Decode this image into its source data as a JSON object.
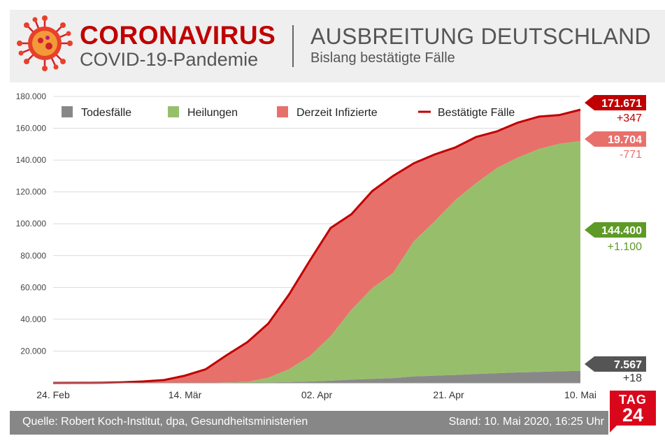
{
  "header": {
    "title": "CORONAVIRUS",
    "subtitle": "COVID-19-Pandemie",
    "right_title": "AUSBREITUNG DEUTSCHLAND",
    "right_subtitle": "Bislang bestätigte Fälle"
  },
  "footer": {
    "source": "Quelle: Robert Koch-Institut, dpa, Gesundheitsministerien",
    "stand": "Stand: 10. Mai 2020, 16:25 Uhr"
  },
  "logo": {
    "line1": "TAG",
    "line2": "24"
  },
  "colors": {
    "deaths": "#888888",
    "recovered": "#97bf6b",
    "infected": "#e8706b",
    "confirmed": "#c00000",
    "brand": "#d9071b"
  },
  "icons": [
    "coronavirus-icon"
  ],
  "chart_data": {
    "type": "area",
    "x": [
      "2020-02-24",
      "2020-02-28",
      "2020-03-02",
      "2020-03-05",
      "2020-03-08",
      "2020-03-11",
      "2020-03-14",
      "2020-03-17",
      "2020-03-20",
      "2020-03-23",
      "2020-03-26",
      "2020-03-29",
      "2020-04-01",
      "2020-04-04",
      "2020-04-07",
      "2020-04-10",
      "2020-04-13",
      "2020-04-16",
      "2020-04-19",
      "2020-04-22",
      "2020-04-25",
      "2020-04-28",
      "2020-05-01",
      "2020-05-04",
      "2020-05-07",
      "2020-05-10"
    ],
    "series": [
      {
        "name": "Todesfälle",
        "values": [
          0,
          0,
          0,
          0,
          0,
          2,
          9,
          26,
          69,
          123,
          267,
          542,
          872,
          1342,
          2016,
          2544,
          3032,
          4050,
          4580,
          5000,
          5600,
          6100,
          6600,
          6900,
          7300,
          7567
        ]
      },
      {
        "name": "Heilungen",
        "values": [
          0,
          0,
          0,
          0,
          0,
          0,
          50,
          100,
          300,
          500,
          3000,
          8000,
          16000,
          28000,
          44000,
          57000,
          66000,
          85000,
          97000,
          110000,
          120000,
          129000,
          135000,
          140000,
          143000,
          144400
        ]
      },
      {
        "name": "Derzeit Infizierte",
        "values": [
          16,
          54,
          150,
          400,
          900,
          1800,
          4500,
          8500,
          17000,
          25000,
          34000,
          47000,
          60000,
          68000,
          60000,
          61000,
          61000,
          49000,
          42000,
          33000,
          29000,
          23000,
          22000,
          20400,
          18000,
          19704
        ]
      },
      {
        "name": "Bestätigte Fälle",
        "values": [
          16,
          54,
          150,
          400,
          900,
          1802,
          4559,
          8626,
          17369,
          25623,
          37267,
          55542,
          76872,
          97342,
          106016,
          120544,
          130032,
          138050,
          143580,
          148000,
          154600,
          158100,
          163600,
          167300,
          168300,
          171671
        ]
      }
    ],
    "xticks": [
      "24. Feb",
      "14. Mär",
      "02. Apr",
      "21. Apr",
      "10. Mai"
    ],
    "yticks": [
      "20.000",
      "40.000",
      "60.000",
      "80.000",
      "100.000",
      "120.000",
      "140.000",
      "160.000",
      "180.000"
    ],
    "ylim": [
      0,
      180000
    ],
    "legend": [
      "Todesfälle",
      "Heilungen",
      "Derzeit Infizierte",
      "Bestätigte Fälle"
    ],
    "legend_position": "top",
    "grid": true,
    "callouts": [
      {
        "name": "Bestätigte Fälle",
        "value": "171.671",
        "change": "+347",
        "box_color": "#c00000",
        "text_color": "#c00000"
      },
      {
        "name": "Derzeit Infizierte",
        "value": "19.704",
        "change": "-771",
        "box_color": "#e8706b",
        "text_color": "#e8706b"
      },
      {
        "name": "Heilungen",
        "value": "144.400",
        "change": "+1.100",
        "box_color": "#5e9a26",
        "text_color": "#5e9a26"
      },
      {
        "name": "Todesfälle",
        "value": "7.567",
        "change": "+18",
        "box_color": "#555555",
        "text_color": "#333333"
      }
    ]
  }
}
